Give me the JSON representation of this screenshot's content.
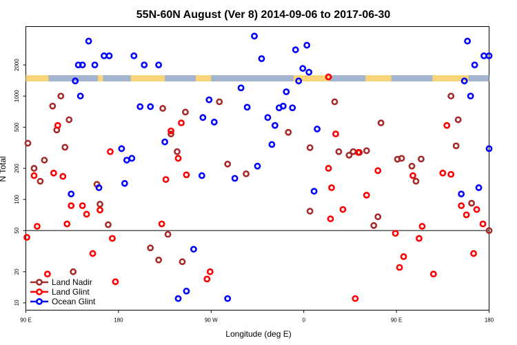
{
  "chart_data": {
    "type": "scatter",
    "title": "55N-60N August (Ver 8)   2014-09-06 to 2017-06-30",
    "xlabel": "Longitude (deg E)",
    "ylabel": "N Total",
    "x_ticks": [
      {
        "value": 90,
        "label": "90 E"
      },
      {
        "value": 180,
        "label": "180"
      },
      {
        "value": 270,
        "label": "90 W"
      },
      {
        "value": 360,
        "label": "0"
      },
      {
        "value": 450,
        "label": "90 E"
      },
      {
        "value": 540,
        "label": "180"
      }
    ],
    "xlim": [
      90,
      540
    ],
    "y_scale": "log",
    "y_ticks": [
      10,
      20,
      50,
      100,
      200,
      500,
      1000,
      2000
    ],
    "ylim": [
      8.5,
      4700
    ],
    "reference_line": 50,
    "legend": {
      "position": "bottom-left"
    },
    "series": [
      {
        "name": "Land Nadir",
        "color": "#a52a2a",
        "points": [
          [
            92,
            350
          ],
          [
            98,
            200
          ],
          [
            104,
            150
          ],
          [
            108,
            240
          ],
          [
            116,
            800
          ],
          [
            120,
            470
          ],
          [
            124,
            1000
          ],
          [
            128,
            320
          ],
          [
            132,
            590
          ],
          [
            136,
            20
          ],
          [
            159,
            140
          ],
          [
            162,
            90
          ],
          [
            170,
            57
          ],
          [
            211,
            34
          ],
          [
            219,
            26
          ],
          [
            223,
            760
          ],
          [
            228,
            46
          ],
          [
            231,
            430
          ],
          [
            237,
            290
          ],
          [
            242,
            25
          ],
          [
            245,
            700
          ],
          [
            278,
            880
          ],
          [
            286,
            220
          ],
          [
            304,
            177
          ],
          [
            345,
            446
          ],
          [
            366,
            77
          ],
          [
            366,
            317
          ],
          [
            384,
            1530
          ],
          [
            390,
            880
          ],
          [
            394,
            290
          ],
          [
            404,
            268
          ],
          [
            408,
            290
          ],
          [
            414,
            285
          ],
          [
            421,
            296
          ],
          [
            428,
            56
          ],
          [
            432,
            68
          ],
          [
            435,
            550
          ],
          [
            451,
            245
          ],
          [
            455,
            250
          ],
          [
            465,
            210
          ],
          [
            469,
            150
          ],
          [
            474,
            246
          ],
          [
            503,
            1000
          ],
          [
            508,
            330
          ],
          [
            510,
            590
          ],
          [
            523,
            92
          ],
          [
            540,
            50
          ]
        ]
      },
      {
        "name": "Land Glint",
        "color": "#ff0000",
        "points": [
          [
            91,
            43
          ],
          [
            98,
            170
          ],
          [
            101,
            55
          ],
          [
            111,
            19
          ],
          [
            121,
            520
          ],
          [
            117,
            180
          ],
          [
            126,
            167
          ],
          [
            130,
            58
          ],
          [
            134,
            87
          ],
          [
            145,
            87
          ],
          [
            149,
            72
          ],
          [
            155,
            30
          ],
          [
            162,
            79
          ],
          [
            172,
            290
          ],
          [
            174,
            42
          ],
          [
            177,
            16
          ],
          [
            222,
            58
          ],
          [
            226,
            156
          ],
          [
            231,
            460
          ],
          [
            238,
            250
          ],
          [
            241,
            550
          ],
          [
            246,
            173
          ],
          [
            266,
            17
          ],
          [
            269,
            20
          ],
          [
            384,
            200
          ],
          [
            386,
            65
          ],
          [
            387,
            130
          ],
          [
            391,
            430
          ],
          [
            398,
            80
          ],
          [
            410,
            11
          ],
          [
            413,
            285
          ],
          [
            421,
            110
          ],
          [
            432,
            190
          ],
          [
            449,
            47
          ],
          [
            453,
            22
          ],
          [
            457,
            28
          ],
          [
            466,
            170
          ],
          [
            472,
            42
          ],
          [
            475,
            55
          ],
          [
            486,
            19
          ],
          [
            495,
            180
          ],
          [
            499,
            520
          ],
          [
            503,
            175
          ],
          [
            513,
            87
          ],
          [
            518,
            71
          ],
          [
            525,
            30
          ],
          [
            528,
            80
          ],
          [
            534,
            58
          ],
          [
            384,
            1530
          ]
        ]
      },
      {
        "name": "Ocean Glint",
        "color": "#0000ff",
        "points": [
          [
            134,
            113
          ],
          [
            138,
            1400
          ],
          [
            141,
            2000
          ],
          [
            143,
            1000
          ],
          [
            145,
            2000
          ],
          [
            151,
            3400
          ],
          [
            157,
            2000
          ],
          [
            161,
            130
          ],
          [
            166,
            2450
          ],
          [
            171,
            2450
          ],
          [
            183,
            310
          ],
          [
            186,
            143
          ],
          [
            188,
            240
          ],
          [
            193,
            250
          ],
          [
            195,
            2450
          ],
          [
            201,
            790
          ],
          [
            205,
            2000
          ],
          [
            211,
            790
          ],
          [
            219,
            2000
          ],
          [
            225,
            360
          ],
          [
            238,
            11
          ],
          [
            246,
            13
          ],
          [
            253,
            33
          ],
          [
            262,
            620
          ],
          [
            261,
            170
          ],
          [
            268,
            920
          ],
          [
            273,
            560
          ],
          [
            286,
            11
          ],
          [
            293,
            160
          ],
          [
            299,
            1200
          ],
          [
            305,
            780
          ],
          [
            312,
            3800
          ],
          [
            315,
            210
          ],
          [
            319,
            2300
          ],
          [
            325,
            620
          ],
          [
            329,
            340
          ],
          [
            332,
            520
          ],
          [
            336,
            770
          ],
          [
            340,
            800
          ],
          [
            343,
            1100
          ],
          [
            349,
            770
          ],
          [
            352,
            2800
          ],
          [
            355,
            1400
          ],
          [
            359,
            1850
          ],
          [
            363,
            3100
          ],
          [
            365,
            1700
          ],
          [
            370,
            120
          ],
          [
            373,
            480
          ],
          [
            513,
            113
          ],
          [
            516,
            1400
          ],
          [
            519,
            3400
          ],
          [
            522,
            1000
          ],
          [
            526,
            2000
          ],
          [
            530,
            130
          ],
          [
            535,
            2450
          ],
          [
            540,
            2450
          ],
          [
            540,
            310
          ]
        ]
      }
    ]
  }
}
